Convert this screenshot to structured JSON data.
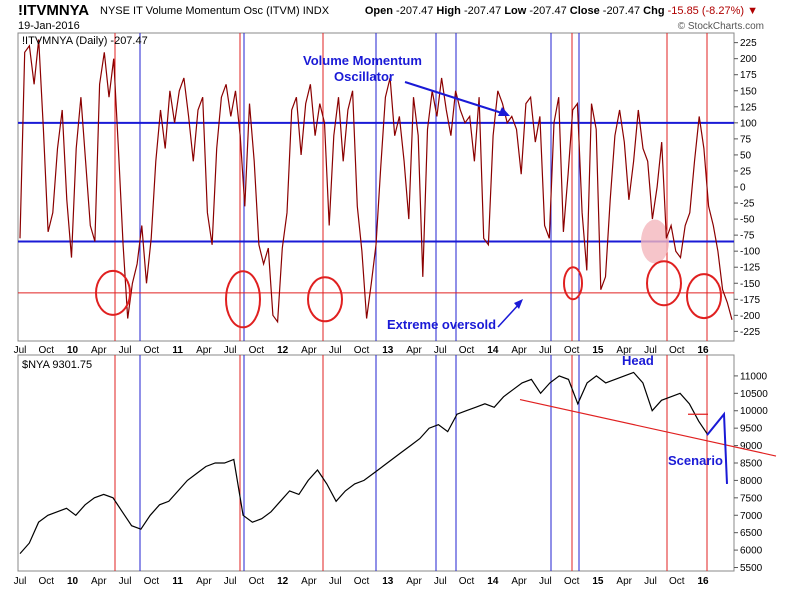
{
  "header": {
    "ticker": "!ITVMNYA",
    "description": "NYSE IT Volume Momentum Osc (ITVM)",
    "exchange": "INDX",
    "date": "19-Jan-2016",
    "open_label": "Open",
    "open": "-207.47",
    "high_label": "High",
    "high": "-207.47",
    "low_label": "Low",
    "low": "-207.47",
    "close_label": "Close",
    "close": "-207.47",
    "chg_label": "Chg",
    "chg": "-15.85 (-8.27%)",
    "brand": "© StockCharts.com"
  },
  "colors": {
    "oscillator": "#8b0000",
    "price": "#000000",
    "hline": "#1a1ad6",
    "red_line": "#e02020",
    "blue_line": "#2020d0",
    "annotation": "#1a1ad6"
  },
  "chart_data": [
    {
      "type": "line",
      "legend": "!ITVMNYA (Daily) -207.47",
      "ylim": [
        -240,
        240
      ],
      "y_ticks": [
        225,
        200,
        175,
        150,
        125,
        100,
        75,
        50,
        25,
        0,
        -25,
        -50,
        -75,
        -100,
        -125,
        -150,
        -175,
        -200,
        -225
      ],
      "x_ticks": [
        "Jul",
        "Oct",
        "10",
        "Apr",
        "Jul",
        "Oct",
        "11",
        "Apr",
        "Jul",
        "Oct",
        "12",
        "Apr",
        "Jul",
        "Oct",
        "13",
        "Apr",
        "Jul",
        "Oct",
        "14",
        "Apr",
        "Jul",
        "Oct",
        "15",
        "Apr",
        "Jul",
        "Oct",
        "16"
      ],
      "horizontal_lines": [
        100,
        -85,
        -165
      ],
      "annotations": [
        "Volume Momentum",
        "Oscillator",
        "Extreme oversold"
      ],
      "series": [
        {
          "values": [
            -80,
            210,
            220,
            160,
            230,
            90,
            -70,
            -40,
            60,
            120,
            -20,
            -110,
            60,
            140,
            40,
            -60,
            -85,
            160,
            210,
            140,
            200,
            60,
            -90,
            -205,
            -150,
            -120,
            -60,
            -150,
            -80,
            40,
            120,
            60,
            150,
            100,
            150,
            170,
            110,
            40,
            120,
            140,
            -40,
            -90,
            60,
            140,
            160,
            110,
            150,
            80,
            -30,
            130,
            40,
            -90,
            -120,
            -95,
            -200,
            -210,
            -95,
            -40,
            120,
            140,
            50,
            130,
            160,
            80,
            130,
            100,
            -60,
            80,
            140,
            40,
            120,
            150,
            -30,
            -100,
            -205,
            -150,
            -90,
            30,
            140,
            170,
            80,
            110,
            40,
            -50,
            140,
            80,
            -140,
            90,
            150,
            110,
            170,
            120,
            80,
            150,
            120,
            100,
            110,
            40,
            140,
            -80,
            -90,
            80,
            150,
            130,
            100,
            110,
            90,
            20,
            130,
            140,
            70,
            110,
            -60,
            -80,
            100,
            140,
            -70,
            20,
            120,
            130,
            -40,
            -130,
            130,
            90,
            -160,
            -140,
            -20,
            80,
            120,
            70,
            -20,
            40,
            120,
            60,
            40,
            -50,
            0,
            70,
            -80,
            -60,
            -100,
            -110,
            -60,
            -40,
            40,
            110,
            60,
            -30,
            -60,
            -100,
            -160,
            -180,
            -207
          ]
        },
        {
          "name": "$NYA 9301.75",
          "values": [
            5900,
            6200,
            6800,
            7000,
            7100,
            7200,
            7000,
            7300,
            7500,
            7600,
            7500,
            7100,
            6700,
            6600,
            7000,
            7300,
            7400,
            7700,
            8000,
            8200,
            8400,
            8500,
            8500,
            8600,
            7000,
            6800,
            6900,
            7100,
            7400,
            7700,
            7600,
            8000,
            8300,
            7900,
            7400,
            7700,
            7900,
            8000,
            8200,
            8400,
            8600,
            8800,
            9000,
            9200,
            9500,
            9600,
            9400,
            9900,
            10000,
            10100,
            10200,
            10100,
            10400,
            10600,
            10800,
            10900,
            10500,
            10800,
            11000,
            10900,
            10200,
            10800,
            11000,
            10800,
            10900,
            11000,
            11100,
            10800,
            10000,
            10300,
            10400,
            10500,
            10200,
            9700,
            9300
          ],
          "ylim": [
            5400,
            11600
          ],
          "y_ticks": [
            11000,
            10500,
            10000,
            9500,
            9000,
            8500,
            8000,
            7500,
            7000,
            6500,
            6000,
            5500
          ],
          "annotations": [
            "Head",
            "Scenario"
          ]
        }
      ]
    }
  ]
}
